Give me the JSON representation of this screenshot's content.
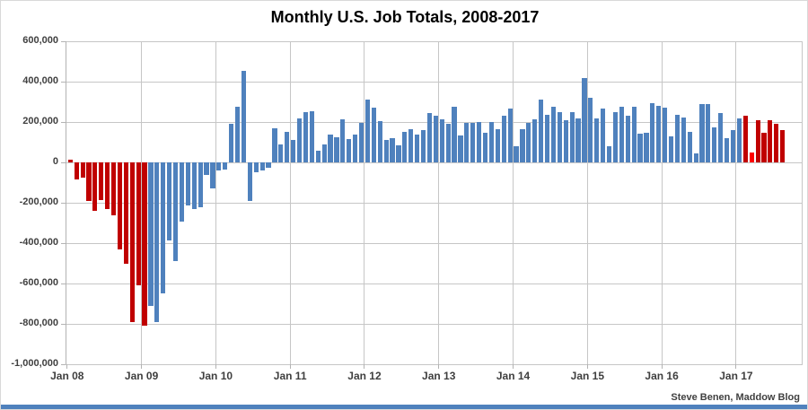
{
  "page": {
    "credit": "Steve Benen, Maddow Blog",
    "bottom_strip_color": "#4f81bd",
    "background": "#ffffff"
  },
  "chart_data": {
    "type": "bar",
    "title": "Monthly U.S. Job Totals, 2008-2017",
    "xlabel": "",
    "ylabel": "",
    "start_month": "Jan 2008",
    "end_month": "Aug 2017",
    "months_per_bar": 1,
    "grid": true,
    "y_axis": {
      "min_thousands": -1000,
      "max_thousands": 600,
      "tick_interval_thousands": 200,
      "tick_labels": [
        "600,000",
        "400,000",
        "200,000",
        "0",
        "-200,000",
        "-400,000",
        "-600,000",
        "-800,000",
        "-1,000,000"
      ]
    },
    "x_axis": {
      "tick_labels": [
        "Jan 08",
        "Jan 09",
        "Jan 10",
        "Jan 11",
        "Jan 12",
        "Jan 13",
        "Jan 14",
        "Jan 15",
        "Jan 16",
        "Jan 17"
      ]
    },
    "colors": {
      "r": "#c00000",
      "R": "#fe0000",
      "b": "#4f81bd"
    },
    "values_thousands": [
      15,
      -85,
      -75,
      -190,
      -240,
      -185,
      -230,
      -260,
      -430,
      -500,
      -790,
      -610,
      -810,
      -710,
      -790,
      -650,
      -385,
      -490,
      -295,
      -215,
      -230,
      -220,
      -60,
      -130,
      -40,
      -35,
      190,
      275,
      455,
      -190,
      -50,
      -40,
      -25,
      170,
      90,
      150,
      110,
      220,
      250,
      255,
      60,
      90,
      140,
      125,
      212,
      115,
      140,
      195,
      310,
      270,
      205,
      112,
      120,
      85,
      150,
      165,
      140,
      160,
      245,
      230,
      215,
      190,
      275,
      135,
      195,
      195,
      200,
      148,
      200,
      165,
      230,
      267,
      81,
      163,
      195,
      215,
      310,
      234,
      275,
      247,
      210,
      247,
      220,
      420,
      320,
      218,
      267,
      78,
      247,
      274,
      229,
      277,
      143,
      148,
      292,
      278,
      272,
      130,
      237,
      222,
      152,
      44,
      291,
      288,
      173,
      244,
      118,
      158,
      220,
      232,
      50,
      207,
      145,
      210,
      190,
      160
    ],
    "bar_color_keys": [
      "r",
      "r",
      "r",
      "r",
      "r",
      "r",
      "r",
      "r",
      "r",
      "r",
      "r",
      "r",
      "r",
      "b",
      "b",
      "b",
      "b",
      "b",
      "b",
      "b",
      "b",
      "b",
      "b",
      "b",
      "b",
      "b",
      "b",
      "b",
      "b",
      "b",
      "b",
      "b",
      "b",
      "b",
      "b",
      "b",
      "b",
      "b",
      "b",
      "b",
      "b",
      "b",
      "b",
      "b",
      "b",
      "b",
      "b",
      "b",
      "b",
      "b",
      "b",
      "b",
      "b",
      "b",
      "b",
      "b",
      "b",
      "b",
      "b",
      "b",
      "b",
      "b",
      "b",
      "b",
      "b",
      "b",
      "b",
      "b",
      "b",
      "b",
      "b",
      "b",
      "b",
      "b",
      "b",
      "b",
      "b",
      "b",
      "b",
      "b",
      "b",
      "b",
      "b",
      "b",
      "b",
      "b",
      "b",
      "b",
      "b",
      "b",
      "b",
      "b",
      "b",
      "b",
      "b",
      "b",
      "b",
      "b",
      "b",
      "b",
      "b",
      "b",
      "b",
      "b",
      "b",
      "b",
      "b",
      "b",
      "b",
      "r",
      "R",
      "r",
      "r",
      "r",
      "r",
      "r"
    ],
    "legend": null
  }
}
